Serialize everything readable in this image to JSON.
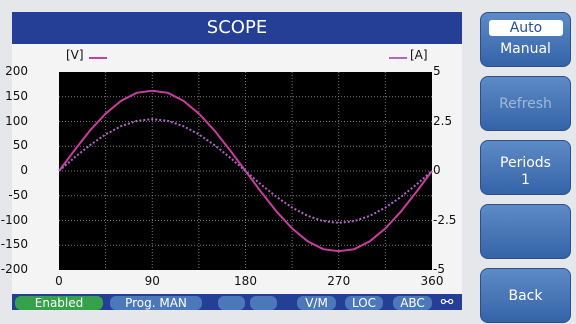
{
  "title": "SCOPE",
  "left_axis": {
    "label": "[V]",
    "ticks": [
      "200",
      "150",
      "100",
      "50",
      "0",
      "-50",
      "-100",
      "-150",
      "-200"
    ]
  },
  "right_axis": {
    "label": "[A]",
    "ticks": [
      "5",
      "2.5",
      "0",
      "-2.5",
      "-5"
    ]
  },
  "x_axis": {
    "ticks": [
      "0",
      "90",
      "180",
      "270",
      "360"
    ]
  },
  "side_buttons": {
    "mode_selected": "Auto",
    "mode_other": "Manual",
    "refresh": "Refresh",
    "periods_label": "Periods",
    "periods_value": "1",
    "back": "Back"
  },
  "status": {
    "enabled": "Enabled",
    "prog": "Prog. MAN",
    "vm": "V/M",
    "loc": "LOC",
    "abc": "ABC"
  },
  "colors": {
    "voltage": "#c63f9d",
    "current": "#b066c2",
    "title_bar": "#243f95",
    "button": "#4b78b9",
    "enabled": "#35a24a"
  },
  "chart_data": {
    "type": "line",
    "x_ticks": [
      0,
      90,
      180,
      270,
      360
    ],
    "xlim": [
      0,
      360
    ],
    "ylim_left": [
      -200,
      200
    ],
    "ylim_right": [
      -5,
      5
    ],
    "series": [
      {
        "name": "[V]",
        "x": [
          0,
          15,
          30,
          45,
          60,
          75,
          90,
          105,
          120,
          135,
          150,
          165,
          180,
          195,
          210,
          225,
          240,
          255,
          270,
          285,
          300,
          315,
          330,
          345,
          360
        ],
        "values": [
          0,
          42,
          82,
          116,
          142,
          158,
          162,
          158,
          142,
          116,
          82,
          42,
          0,
          -42,
          -82,
          -116,
          -142,
          -158,
          -162,
          -158,
          -142,
          -116,
          -82,
          -42,
          0
        ]
      },
      {
        "name": "[A]",
        "x": [
          0,
          15,
          30,
          45,
          60,
          75,
          90,
          105,
          120,
          135,
          150,
          165,
          180,
          195,
          210,
          225,
          240,
          255,
          270,
          285,
          300,
          315,
          330,
          345,
          360
        ],
        "values": [
          0,
          0.68,
          1.31,
          1.85,
          2.27,
          2.53,
          2.62,
          2.53,
          2.27,
          1.85,
          1.31,
          0.68,
          0,
          -0.68,
          -1.31,
          -1.85,
          -2.27,
          -2.53,
          -2.62,
          -2.53,
          -2.27,
          -1.85,
          -1.31,
          -0.68,
          0
        ]
      }
    ]
  }
}
